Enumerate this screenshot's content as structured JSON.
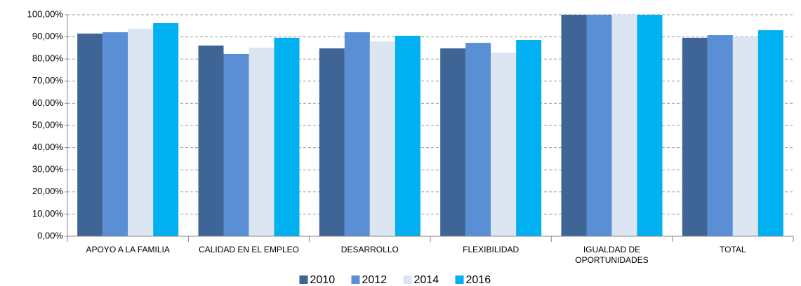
{
  "chart_data": {
    "type": "bar",
    "categories": [
      "APOYO A LA FAMILIA",
      "CALIDAD EN EL EMPLEO",
      "DESARROLLO",
      "FLEXIBILIDAD",
      "IGUALDAD DE OPORTUNIDADES",
      "TOTAL"
    ],
    "series": [
      {
        "name": "2010",
        "color": "#3f6496",
        "values": [
          91.5,
          86.1,
          84.8,
          84.8,
          100,
          89.6
        ]
      },
      {
        "name": "2012",
        "color": "#5a8fd6",
        "values": [
          92.1,
          82.3,
          92.1,
          87.3,
          100,
          90.8
        ]
      },
      {
        "name": "2014",
        "color": "#dce6f2",
        "values": [
          93.7,
          85.1,
          88.0,
          82.9,
          100,
          89.9
        ]
      },
      {
        "name": "2016",
        "color": "#00b0f0",
        "values": [
          96.2,
          89.6,
          90.5,
          88.6,
          100,
          93.0
        ]
      }
    ],
    "ylim": [
      0,
      100
    ],
    "yticks": [
      {
        "value": 0,
        "label": "0,00%"
      },
      {
        "value": 10,
        "label": "10,00%"
      },
      {
        "value": 20,
        "label": "20,00%"
      },
      {
        "value": 30,
        "label": "30,00%"
      },
      {
        "value": 40,
        "label": "40,00%"
      },
      {
        "value": 50,
        "label": "50,00%"
      },
      {
        "value": 60,
        "label": "60,00%"
      },
      {
        "value": 70,
        "label": "70,00%"
      },
      {
        "value": 80,
        "label": "80,00%"
      },
      {
        "value": 90,
        "label": "90,00%"
      },
      {
        "value": 100,
        "label": "100,00%"
      }
    ],
    "grid": true,
    "legend": "bottom"
  }
}
